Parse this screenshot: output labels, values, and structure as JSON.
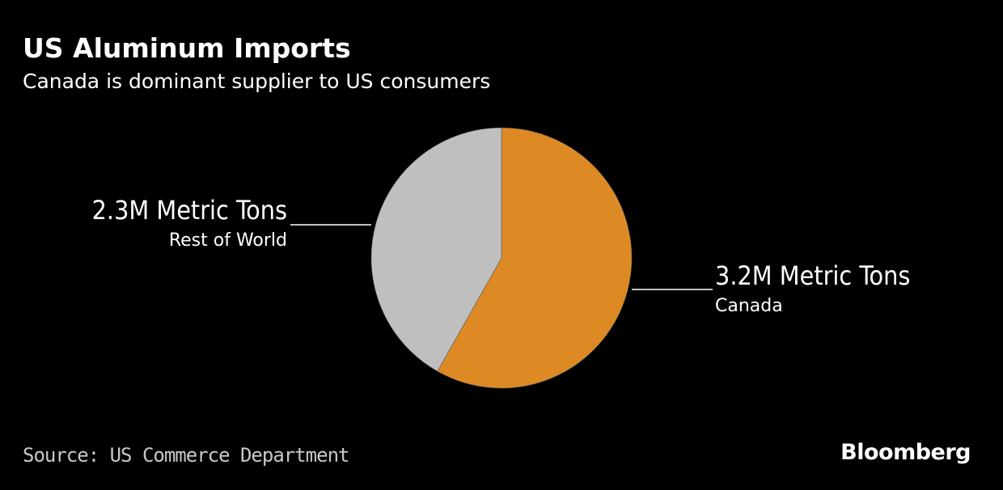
{
  "header": {
    "title": "US Aluminum Imports",
    "subtitle": "Canada is dominant supplier to US consumers"
  },
  "chart_data": {
    "type": "pie",
    "title": "US Aluminum Imports",
    "subtitle": "Canada is dominant supplier to US consumers",
    "unit": "Metric Tons",
    "slices": [
      {
        "name": "Canada",
        "value": 3.2,
        "value_label": "3.2M Metric Tons",
        "color": "#DD8A24",
        "label_side": "right"
      },
      {
        "name": "Rest of World",
        "value": 2.3,
        "value_label": "2.3M Metric Tons",
        "color": "#BFBFBF",
        "label_side": "left"
      }
    ],
    "start": "12 o'clock",
    "direction": "clockwise"
  },
  "footer": {
    "source": "Source: US Commerce Department",
    "brand": "Bloomberg"
  }
}
